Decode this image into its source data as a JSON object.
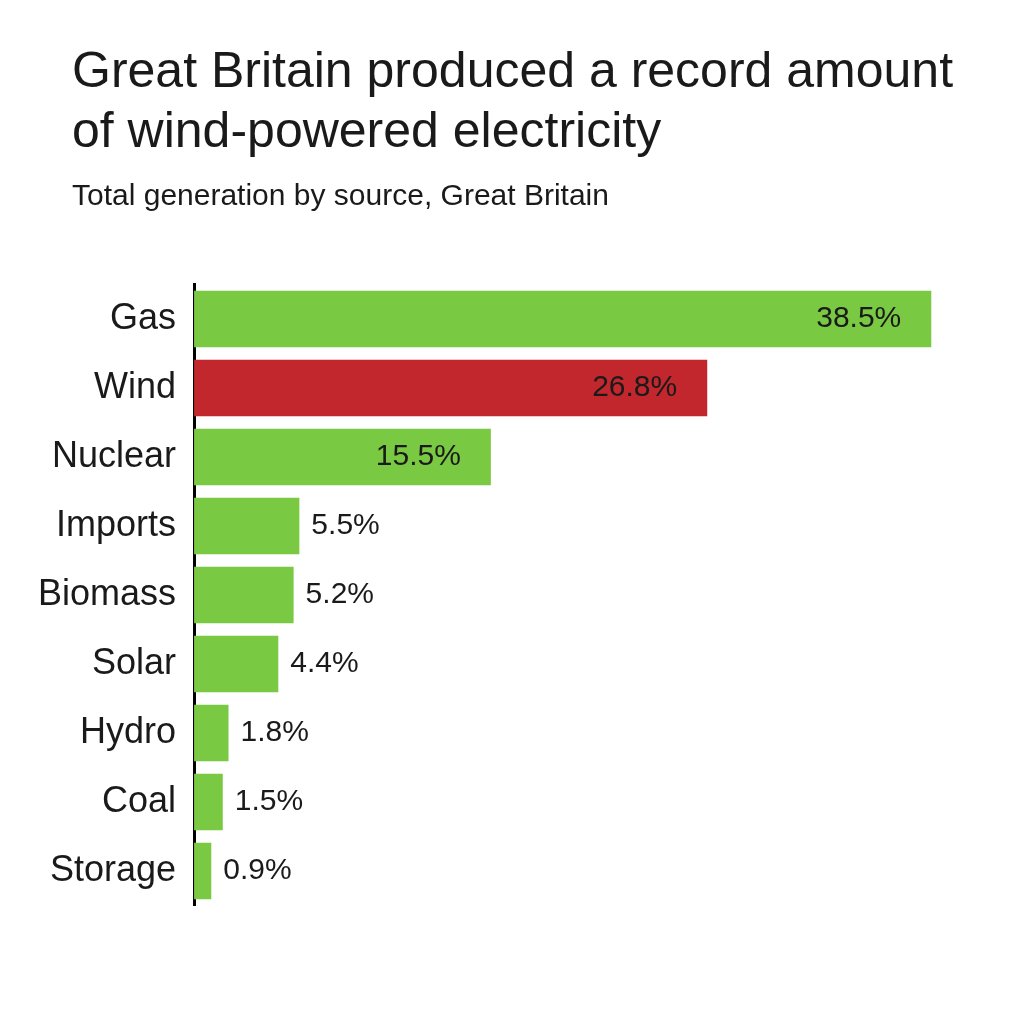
{
  "chart_data": {
    "type": "bar",
    "orientation": "horizontal",
    "title": "Great Britain produced a record amount of wind-powered electricity",
    "subtitle": "Total generation by source, Great Britain",
    "categories": [
      "Gas",
      "Wind",
      "Nuclear",
      "Imports",
      "Biomass",
      "Solar",
      "Hydro",
      "Coal",
      "Storage"
    ],
    "values": [
      38.5,
      26.8,
      15.5,
      5.5,
      5.2,
      4.4,
      1.8,
      1.5,
      0.9
    ],
    "value_labels": [
      "38.5%",
      "26.8%",
      "15.5%",
      "5.5%",
      "5.2%",
      "4.4%",
      "1.8%",
      "1.5%",
      "0.9%"
    ],
    "colors": [
      "#7ac943",
      "#c1272d",
      "#7ac943",
      "#7ac943",
      "#7ac943",
      "#7ac943",
      "#7ac943",
      "#7ac943",
      "#7ac943"
    ],
    "legend": false
  }
}
